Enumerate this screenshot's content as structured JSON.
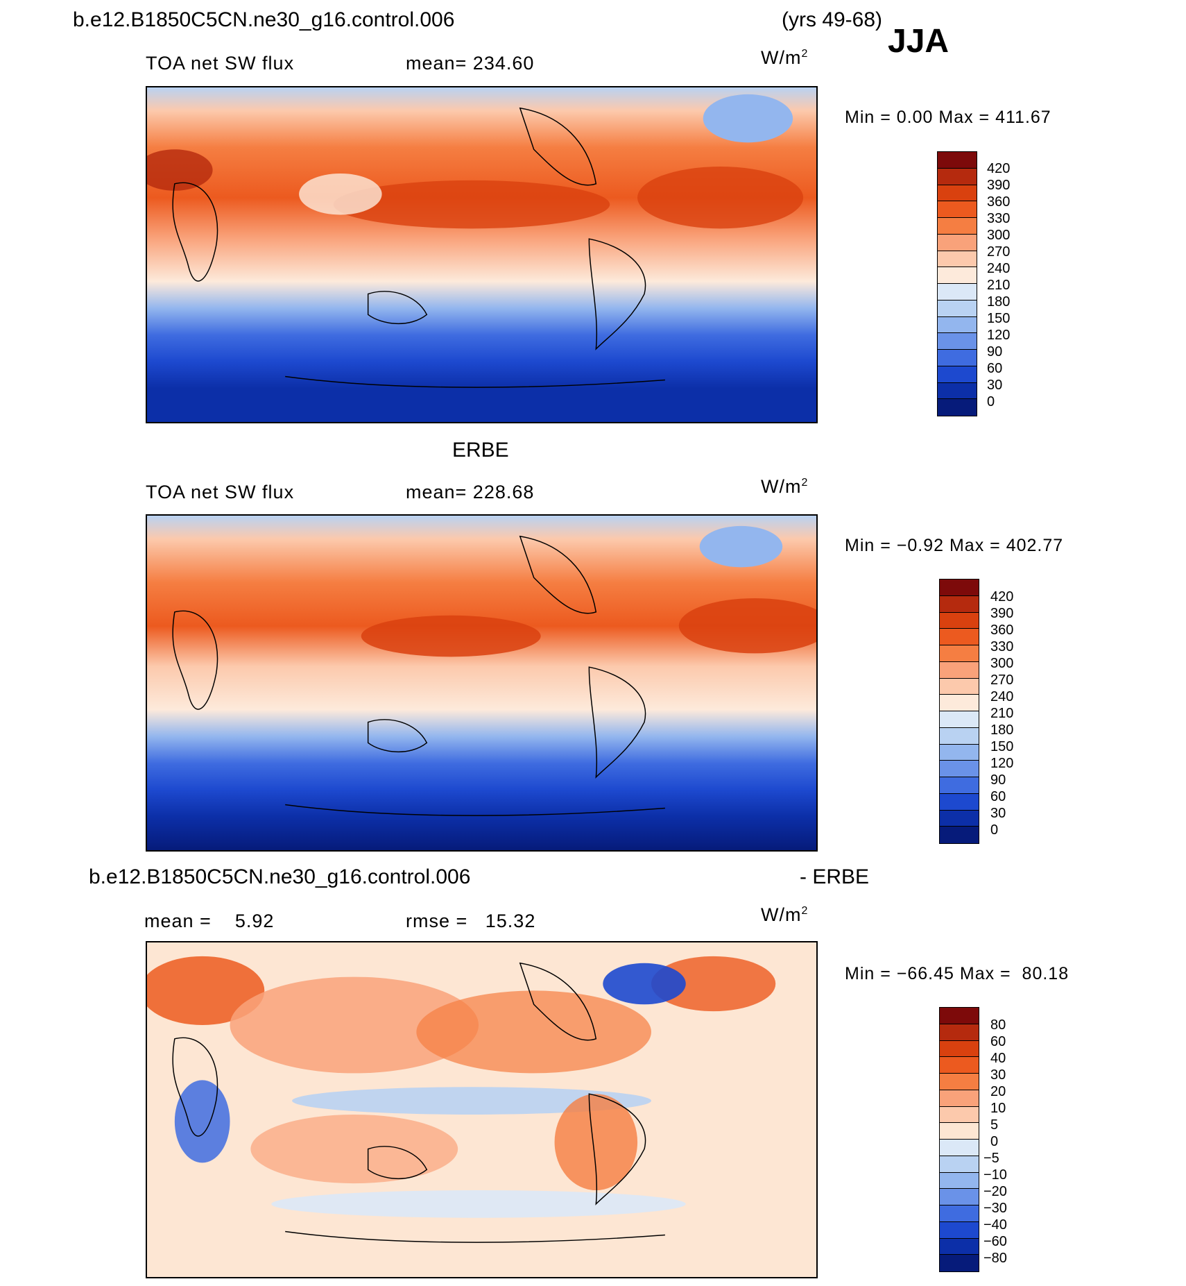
{
  "header": {
    "case_name": "b.e12.B1850C5CN.ne30_g16.control.006",
    "years": "(yrs 49-68)",
    "season": "JJA"
  },
  "panels": [
    {
      "id": "model",
      "heading": "",
      "variable": "TOA net SW flux",
      "stat_text": "mean= 234.60",
      "unit": "W/m",
      "unit_exp": "2",
      "minmax": "Min =    0.00 Max = 411.67",
      "levels": [
        "420",
        "390",
        "360",
        "330",
        "300",
        "270",
        "240",
        "210",
        "180",
        "150",
        "120",
        "90",
        "60",
        "30",
        "0"
      ]
    },
    {
      "id": "obs",
      "heading": "ERBE",
      "variable": "TOA net SW flux",
      "stat_text": "mean= 228.68",
      "unit": "W/m",
      "unit_exp": "2",
      "minmax": "Min =  −0.92 Max = 402.77",
      "levels": [
        "420",
        "390",
        "360",
        "330",
        "300",
        "270",
        "240",
        "210",
        "180",
        "150",
        "120",
        "90",
        "60",
        "30",
        "0"
      ]
    },
    {
      "id": "diff",
      "heading_left": "b.e12.B1850C5CN.ne30_g16.control.006",
      "heading_right": "- ERBE",
      "mean_text": "mean =    5.92",
      "rmse_text": "rmse =   15.32",
      "unit": "W/m",
      "unit_exp": "2",
      "minmax": "Min = −66.45 Max =  80.18",
      "levels": [
        "80",
        "60",
        "40",
        "30",
        "20",
        "10",
        "5",
        "0",
        "−5",
        "−10",
        "−20",
        "−30",
        "−40",
        "−60",
        "−80"
      ]
    }
  ],
  "colors": {
    "flux_scale": [
      "#7d0a0a",
      "#b52a0e",
      "#d9410f",
      "#ec5a1f",
      "#f57e42",
      "#f9a27a",
      "#fcc9ac",
      "#fdeadb",
      "#dbe8f7",
      "#b9d2f2",
      "#93b6ee",
      "#6a92e8",
      "#3f6ce0",
      "#1d49cf",
      "#0c2fa8",
      "#061b7a"
    ],
    "diff_scale": [
      "#7d0a0a",
      "#b52a0e",
      "#d9410f",
      "#ec5a1f",
      "#f57e42",
      "#f9a27a",
      "#fcc9ac",
      "#fde6d3",
      "#dbe8f7",
      "#b9d2f2",
      "#93b6ee",
      "#6a92e8",
      "#3f6ce0",
      "#1d49cf",
      "#0c2fa8",
      "#061b7a"
    ]
  }
}
